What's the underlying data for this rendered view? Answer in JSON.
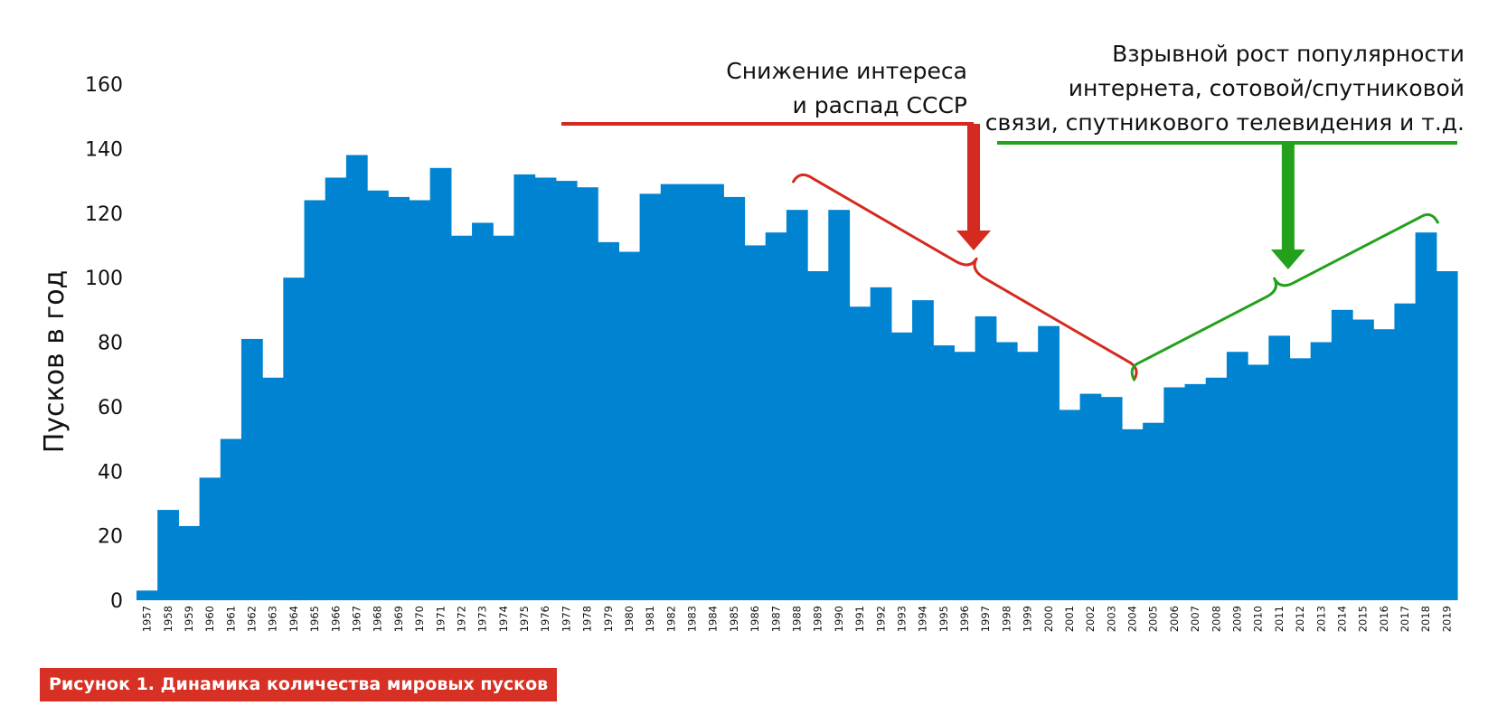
{
  "chart_data": {
    "type": "bar",
    "title": "",
    "xlabel": "",
    "ylabel": "Пусков в год",
    "ylim": [
      0,
      160
    ],
    "yticks": [
      0,
      20,
      40,
      60,
      80,
      100,
      120,
      140,
      160
    ],
    "grid": false,
    "colors": {
      "bar": "#0084d2",
      "decline": "#d42a20",
      "growth": "#23a11d",
      "caption_bg": "#d73024"
    },
    "categories": [
      "1957",
      "1958",
      "1959",
      "1960",
      "1961",
      "1962",
      "1963",
      "1964",
      "1965",
      "1966",
      "1967",
      "1968",
      "1969",
      "1970",
      "1971",
      "1972",
      "1973",
      "1974",
      "1975",
      "1976",
      "1977",
      "1978",
      "1979",
      "1980",
      "1981",
      "1982",
      "1983",
      "1984",
      "1985",
      "1986",
      "1987",
      "1988",
      "1989",
      "1990",
      "1991",
      "1992",
      "1993",
      "1994",
      "1995",
      "1996",
      "1997",
      "1998",
      "1999",
      "2000",
      "2001",
      "2002",
      "2003",
      "2004",
      "2005",
      "2006",
      "2007",
      "2008",
      "2009",
      "2010",
      "2011",
      "2012",
      "2013",
      "2014",
      "2015",
      "2016",
      "2017",
      "2018",
      "2019"
    ],
    "values": [
      3,
      28,
      23,
      38,
      50,
      81,
      69,
      100,
      124,
      131,
      138,
      127,
      125,
      124,
      134,
      113,
      117,
      113,
      132,
      131,
      130,
      128,
      111,
      108,
      126,
      129,
      129,
      129,
      125,
      110,
      114,
      121,
      102,
      121,
      91,
      97,
      83,
      93,
      79,
      77,
      88,
      80,
      77,
      85,
      59,
      64,
      63,
      53,
      55,
      66,
      67,
      69,
      77,
      73,
      82,
      75,
      80,
      90,
      87,
      84,
      92,
      114,
      102
    ],
    "annotations": [
      {
        "id": "decline",
        "lines": [
          "Снижение интереса",
          "и распад СССР"
        ],
        "from": "1988",
        "to": "2004",
        "arrow_year": "1996"
      },
      {
        "id": "growth",
        "lines": [
          "Взрывной рост популярности",
          "интернета, сотовой/спутниковой",
          "связи, спутникового телевидения и т.д."
        ],
        "from": "2004",
        "to": "2019",
        "arrow_year": "2011"
      }
    ]
  },
  "caption": "Рисунок 1. Динамика количества мировых пусков"
}
